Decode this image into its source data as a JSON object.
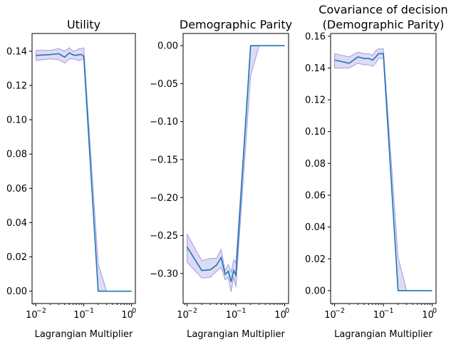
{
  "chart_data": [
    {
      "type": "line",
      "title": "Utility",
      "xlabel": "Lagrangian Multiplier",
      "ylabel": "",
      "xscale": "log",
      "xlim": [
        0.0083,
        1.2
      ],
      "ylim": [
        -0.0072,
        0.1503
      ],
      "yticks": [
        "0.00",
        "0.02",
        "0.04",
        "0.06",
        "0.08",
        "0.10",
        "0.12",
        "0.14"
      ],
      "yticks_values": [
        0,
        0.02,
        0.04,
        0.06,
        0.08,
        0.1,
        0.12,
        0.14
      ],
      "xticks_values": [
        0.01,
        0.1,
        1
      ],
      "xticks_base": "10",
      "xticks_exp": [
        "−2",
        "−1",
        "0"
      ],
      "x": [
        0.01,
        0.02,
        0.03,
        0.04,
        0.05,
        0.06,
        0.07,
        0.08,
        0.09,
        0.1,
        0.2,
        0.3,
        0.5,
        1.0
      ],
      "y": [
        0.1375,
        0.138,
        0.1385,
        0.1365,
        0.139,
        0.1378,
        0.1375,
        0.138,
        0.138,
        0.137,
        0.0,
        0.0,
        0.0,
        0.0
      ],
      "lower": [
        0.1345,
        0.1355,
        0.135,
        0.133,
        0.1355,
        0.1355,
        0.135,
        0.1345,
        0.135,
        0.136,
        0.0,
        0.0,
        0.0,
        0.0
      ],
      "upper": [
        0.1405,
        0.1405,
        0.1415,
        0.14,
        0.142,
        0.14,
        0.1405,
        0.1415,
        0.1415,
        0.142,
        0.016,
        0.0,
        0.0,
        0.0
      ]
    },
    {
      "type": "line",
      "title": "Demographic Parity",
      "xlabel": "Lagrangian Multiplier",
      "ylabel": "",
      "xscale": "log",
      "xlim": [
        0.0083,
        1.2
      ],
      "ylim": [
        -0.3395,
        0.016
      ],
      "yticks": [
        "−0.30",
        "−0.25",
        "−0.20",
        "−0.15",
        "−0.10",
        "−0.05",
        "0.00"
      ],
      "yticks_values": [
        -0.3,
        -0.25,
        -0.2,
        -0.15,
        -0.1,
        -0.05,
        0.0
      ],
      "xticks_values": [
        0.01,
        0.1,
        1
      ],
      "xticks_base": "10",
      "xticks_exp": [
        "−2",
        "−1",
        "0"
      ],
      "x": [
        0.01,
        0.02,
        0.03,
        0.04,
        0.05,
        0.06,
        0.07,
        0.08,
        0.09,
        0.1,
        0.2,
        0.3,
        0.5,
        1.0
      ],
      "y": [
        -0.265,
        -0.296,
        -0.295,
        -0.289,
        -0.279,
        -0.301,
        -0.297,
        -0.311,
        -0.296,
        -0.302,
        0.0,
        0.0,
        0.0,
        0.0
      ],
      "lower": [
        -0.285,
        -0.306,
        -0.305,
        -0.297,
        -0.292,
        -0.308,
        -0.306,
        -0.324,
        -0.305,
        -0.318,
        -0.04,
        0.0,
        0.0,
        0.0
      ],
      "upper": [
        -0.248,
        -0.283,
        -0.28,
        -0.28,
        -0.268,
        -0.296,
        -0.288,
        -0.298,
        -0.282,
        -0.286,
        0.0,
        0.0,
        0.0,
        0.0
      ]
    },
    {
      "type": "line",
      "title": "Covariance of decision\n(Demographic Parity)",
      "xlabel": "Lagrangian Multiplier",
      "ylabel": "",
      "xscale": "log",
      "xlim": [
        0.0083,
        1.2
      ],
      "ylim": [
        -0.0081,
        0.1617
      ],
      "yticks": [
        "0.00",
        "0.02",
        "0.04",
        "0.06",
        "0.08",
        "0.10",
        "0.12",
        "0.14",
        "0.16"
      ],
      "yticks_values": [
        0,
        0.02,
        0.04,
        0.06,
        0.08,
        0.1,
        0.12,
        0.14,
        0.16
      ],
      "xticks_values": [
        0.01,
        0.1,
        1
      ],
      "xticks_base": "10",
      "xticks_exp": [
        "−2",
        "−1",
        "0"
      ],
      "x": [
        0.01,
        0.02,
        0.03,
        0.04,
        0.05,
        0.06,
        0.07,
        0.08,
        0.09,
        0.1,
        0.2,
        0.3,
        0.5,
        1.0
      ],
      "y": [
        0.145,
        0.143,
        0.147,
        0.146,
        0.146,
        0.145,
        0.147,
        0.149,
        0.149,
        0.149,
        0.0,
        0.0,
        0.0,
        0.0
      ],
      "lower": [
        0.14,
        0.14,
        0.143,
        0.142,
        0.142,
        0.141,
        0.143,
        0.146,
        0.146,
        0.146,
        0.0,
        0.0,
        0.0,
        0.0
      ],
      "upper": [
        0.149,
        0.147,
        0.15,
        0.149,
        0.149,
        0.148,
        0.151,
        0.152,
        0.152,
        0.152,
        0.021,
        0.0,
        0.0,
        0.0
      ]
    }
  ]
}
